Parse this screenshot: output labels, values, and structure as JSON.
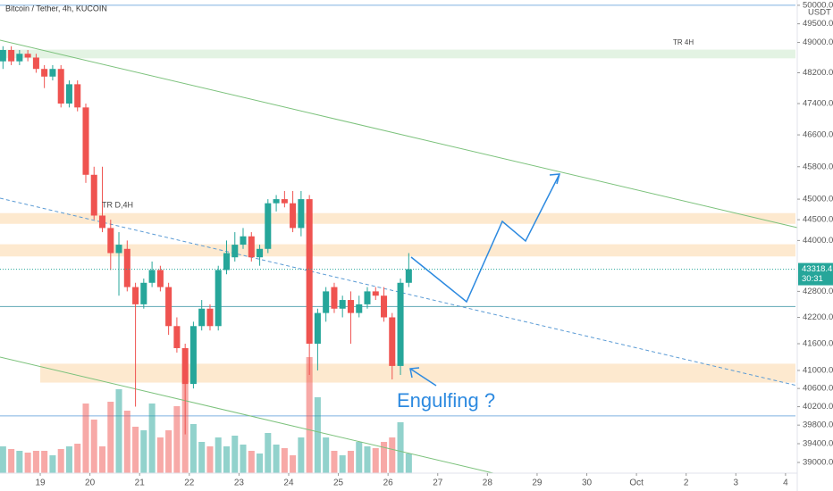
{
  "chart_data": {
    "type": "candlestick",
    "title": "Bitcoin / Tether, 4h, KUCOIN",
    "currency": "USDT",
    "countdown": "30:31",
    "annotations": [
      "TR 4H",
      "TR D,4H",
      "Engulfing ?"
    ],
    "log_scale": true,
    "ylim": [
      38774,
      50144
    ],
    "xlim": [
      18.19,
      34.2
    ],
    "yticks": [
      {
        "value": 50000,
        "label": "50000.0"
      },
      {
        "value": 49500,
        "label": "49500.0"
      },
      {
        "value": 49000,
        "label": "49000.0"
      },
      {
        "value": 48200,
        "label": "48200.0"
      },
      {
        "value": 47400,
        "label": "47400.0"
      },
      {
        "value": 46600,
        "label": "46600.0"
      },
      {
        "value": 45800,
        "label": "45800.0"
      },
      {
        "value": 45000,
        "label": "45000.0"
      },
      {
        "value": 44500,
        "label": "44500.0"
      },
      {
        "value": 44000,
        "label": "44000.0"
      },
      {
        "value": 42800,
        "label": "42800.0"
      },
      {
        "value": 42200,
        "label": "42200.0"
      },
      {
        "value": 41600,
        "label": "41600.0"
      },
      {
        "value": 41000,
        "label": "41000.0"
      },
      {
        "value": 40600,
        "label": "40600.0"
      },
      {
        "value": 40200,
        "label": "40200.0"
      },
      {
        "value": 39800,
        "label": "39800.0"
      },
      {
        "value": 39400,
        "label": "39400.0"
      },
      {
        "value": 39000,
        "label": "39000.0"
      }
    ],
    "xticks": [
      19,
      20,
      21,
      22,
      23,
      24,
      25,
      26,
      27,
      28,
      29,
      30,
      {
        "value": 31,
        "label": "Oct"
      },
      {
        "value": 32,
        "label": "2"
      },
      {
        "value": 33,
        "label": "3"
      },
      {
        "value": 34,
        "label": "4"
      }
    ],
    "up_color": "#26a69a",
    "down_color": "#ef5350",
    "zones": [
      {
        "low": 48580,
        "high": 48810,
        "start": 18.19,
        "color": "#e3f3e3"
      },
      {
        "low": 44400,
        "high": 44660,
        "start": 18.19,
        "color": "#fde9cf"
      },
      {
        "low": 43620,
        "high": 43910,
        "start": 18.19,
        "color": "#fde9cf"
      },
      {
        "low": 40730,
        "high": 41150,
        "start": 19,
        "color": "#fde9cf"
      }
    ],
    "levels": [
      {
        "value": 50000,
        "color": "#7fb2e0"
      },
      {
        "value": 42450,
        "color": "#5fa8b5"
      },
      {
        "value": 40000,
        "color": "#7fb2e0"
      }
    ],
    "x": [
      18.25,
      18.417,
      18.583,
      18.75,
      18.917,
      19.083,
      19.25,
      19.417,
      19.583,
      19.75,
      19.917,
      20.083,
      20.25,
      20.417,
      20.583,
      20.75,
      20.917,
      21.083,
      21.25,
      21.417,
      21.583,
      21.75,
      21.917,
      22.083,
      22.25,
      22.417,
      22.583,
      22.75,
      22.917,
      23.083,
      23.25,
      23.417,
      23.583,
      23.75,
      23.917,
      24.083,
      24.25,
      24.417,
      24.583,
      24.75,
      24.917,
      25.083,
      25.25,
      25.417,
      25.583,
      25.75,
      25.917,
      26.083,
      26.25,
      26.417
    ],
    "open": [
      48500,
      48800,
      48500,
      48700,
      48600,
      48300,
      48100,
      48300,
      47400,
      47900,
      47300,
      45600,
      44600,
      44300,
      43700,
      43800,
      42900,
      42500,
      43000,
      43300,
      42900,
      42000,
      41500,
      40700,
      42000,
      42400,
      42000,
      43300,
      43600,
      43900,
      44100,
      43600,
      43800,
      44900,
      45000,
      44900,
      44300,
      45000,
      41600,
      42300,
      42900,
      42400,
      42600,
      42300,
      42500,
      42800,
      42700,
      42200,
      41100,
      43000
    ],
    "high": [
      48900,
      48900,
      48800,
      48800,
      48700,
      48400,
      48400,
      48400,
      48000,
      48000,
      47400,
      45800,
      45800,
      44500,
      44200,
      44000,
      43000,
      43100,
      43500,
      43400,
      43000,
      42200,
      41600,
      42100,
      42600,
      42500,
      43400,
      44000,
      44200,
      44300,
      44200,
      43900,
      45000,
      45100,
      45200,
      45200,
      45200,
      45100,
      42400,
      42900,
      43000,
      42700,
      42800,
      42700,
      42900,
      42900,
      42900,
      42300,
      43100,
      43700
    ],
    "low": [
      48300,
      48400,
      48400,
      48500,
      48200,
      47800,
      48000,
      47300,
      47300,
      47200,
      45400,
      44500,
      44200,
      43300,
      42700,
      42800,
      40200,
      42400,
      42900,
      42800,
      41800,
      41400,
      39600,
      40600,
      41900,
      41900,
      41900,
      43200,
      43500,
      43800,
      43500,
      43400,
      43700,
      44700,
      44800,
      44200,
      44100,
      40900,
      41000,
      42100,
      42300,
      42200,
      41600,
      42200,
      42400,
      42600,
      42100,
      40800,
      40900,
      42900
    ],
    "close": [
      48800,
      48500,
      48700,
      48600,
      48300,
      48100,
      48300,
      47400,
      47900,
      47300,
      45600,
      44600,
      44300,
      43700,
      43900,
      42900,
      42500,
      43000,
      43300,
      42900,
      42000,
      41500,
      40700,
      42000,
      42400,
      42000,
      43300,
      43700,
      43900,
      44100,
      43600,
      43800,
      44900,
      45000,
      44900,
      44300,
      45000,
      41600,
      42300,
      42800,
      42400,
      42600,
      42300,
      42500,
      42800,
      42700,
      42200,
      41100,
      43000,
      43318.4
    ],
    "volume": [
      30,
      27,
      25,
      23,
      25,
      25,
      20,
      27,
      30,
      33,
      78,
      60,
      30,
      80,
      94,
      70,
      52,
      48,
      78,
      40,
      48,
      75,
      100,
      55,
      35,
      30,
      40,
      30,
      42,
      32,
      25,
      22,
      45,
      32,
      28,
      20,
      40,
      130,
      85,
      40,
      25,
      20,
      25,
      35,
      30,
      28,
      35,
      40,
      57,
      22
    ]
  }
}
